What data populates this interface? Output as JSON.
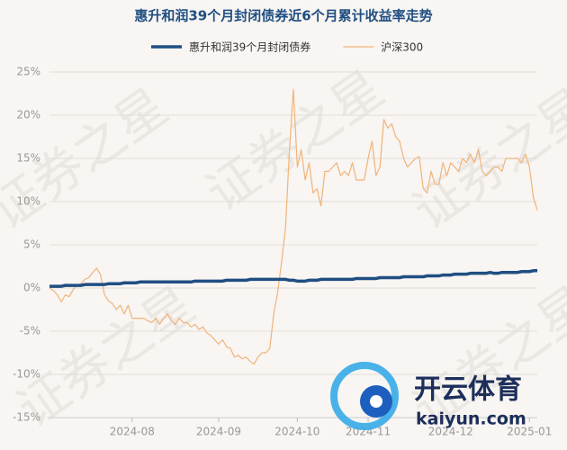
{
  "chart_data": {
    "type": "line",
    "title": "惠升和润39个月封闭债券近6个月累计收益率走势",
    "watermark": "证券之星",
    "logo_texts": [
      "开云体育",
      "kaiyun.com"
    ],
    "categories": [
      null,
      null,
      null,
      null,
      null,
      null,
      null,
      null,
      null,
      null,
      null,
      null,
      null,
      null,
      null,
      null,
      null,
      null,
      null,
      null,
      null,
      "2024-08",
      null,
      null,
      null,
      null,
      null,
      null,
      null,
      null,
      null,
      null,
      null,
      null,
      null,
      null,
      null,
      null,
      null,
      null,
      null,
      null,
      null,
      "2024-09",
      null,
      null,
      null,
      null,
      null,
      null,
      null,
      null,
      null,
      null,
      null,
      null,
      null,
      null,
      null,
      null,
      null,
      null,
      null,
      "2024-10",
      null,
      null,
      null,
      null,
      null,
      null,
      null,
      null,
      null,
      null,
      null,
      null,
      null,
      null,
      null,
      null,
      null,
      "2024-11",
      null,
      null,
      null,
      null,
      null,
      null,
      null,
      null,
      null,
      null,
      null,
      null,
      null,
      null,
      null,
      null,
      null,
      null,
      null,
      null,
      "2024-12",
      null,
      null,
      null,
      null,
      null,
      null,
      null,
      null,
      null,
      null,
      null,
      null,
      null,
      null,
      null,
      null,
      null,
      null,
      null,
      "2025-01",
      null,
      null
    ],
    "series": [
      {
        "name": "惠升和润39个月封闭债券",
        "color": "#1f4e82",
        "width": 3.5,
        "values": [
          0.2,
          0.2,
          0.2,
          0.2,
          0.3,
          0.3,
          0.3,
          0.3,
          0.3,
          0.4,
          0.4,
          0.4,
          0.4,
          0.4,
          0.4,
          0.5,
          0.5,
          0.5,
          0.5,
          0.6,
          0.6,
          0.6,
          0.6,
          0.7,
          0.7,
          0.7,
          0.7,
          0.7,
          0.7,
          0.7,
          0.7,
          0.7,
          0.7,
          0.7,
          0.7,
          0.7,
          0.7,
          0.8,
          0.8,
          0.8,
          0.8,
          0.8,
          0.8,
          0.8,
          0.8,
          0.9,
          0.9,
          0.9,
          0.9,
          0.9,
          0.9,
          1.0,
          1.0,
          1.0,
          1.0,
          1.0,
          1.0,
          1.0,
          1.0,
          1.0,
          1.0,
          0.9,
          0.9,
          0.8,
          0.8,
          0.8,
          0.9,
          0.9,
          0.9,
          1.0,
          1.0,
          1.0,
          1.0,
          1.0,
          1.0,
          1.0,
          1.0,
          1.0,
          1.1,
          1.1,
          1.1,
          1.1,
          1.1,
          1.1,
          1.2,
          1.2,
          1.2,
          1.2,
          1.2,
          1.2,
          1.3,
          1.3,
          1.3,
          1.3,
          1.3,
          1.3,
          1.4,
          1.4,
          1.4,
          1.4,
          1.5,
          1.5,
          1.5,
          1.6,
          1.6,
          1.6,
          1.6,
          1.7,
          1.7,
          1.7,
          1.7,
          1.7,
          1.8,
          1.7,
          1.7,
          1.8,
          1.8,
          1.8,
          1.8,
          1.8,
          1.9,
          1.9,
          1.9,
          2.0,
          2.0
        ]
      },
      {
        "name": "沪深300",
        "color": "#f0b47a",
        "width": 1.2,
        "values": [
          0.0,
          -0.3,
          -0.8,
          -1.6,
          -0.8,
          -1.0,
          -0.2,
          0.3,
          0.5,
          1.0,
          1.2,
          1.8,
          2.3,
          1.5,
          -0.8,
          -1.5,
          -1.8,
          -2.5,
          -2.0,
          -3.0,
          -2.0,
          -3.5,
          -3.5,
          -3.5,
          -3.5,
          -3.8,
          -4.0,
          -3.5,
          -4.2,
          -3.5,
          -3.0,
          -3.8,
          -4.2,
          -3.5,
          -4.0,
          -4.0,
          -4.5,
          -4.2,
          -4.8,
          -4.5,
          -5.2,
          -5.5,
          -6.0,
          -6.5,
          -6.0,
          -6.8,
          -7.0,
          -8.0,
          -7.8,
          -8.2,
          -8.0,
          -8.5,
          -8.8,
          -8.0,
          -7.5,
          -7.5,
          -7.0,
          -3.0,
          -0.5,
          3.0,
          7.0,
          16.0,
          23.0,
          14.0,
          16.0,
          12.5,
          14.5,
          11.0,
          11.5,
          9.5,
          13.5,
          13.5,
          14.0,
          14.5,
          13.0,
          13.5,
          13.0,
          14.5,
          12.5,
          12.5,
          12.5,
          15.0,
          17.0,
          13.0,
          14.0,
          19.5,
          18.5,
          19.0,
          17.5,
          17.0,
          15.0,
          14.0,
          14.5,
          15.0,
          15.2,
          11.5,
          11.0,
          13.5,
          12.0,
          12.0,
          14.5,
          13.0,
          14.5,
          14.0,
          13.5,
          15.0,
          14.5,
          15.5,
          14.5,
          16.0,
          13.5,
          13.0,
          13.5,
          14.0,
          14.0,
          13.5,
          15.0,
          15.0,
          15.0,
          15.0,
          14.5,
          15.5,
          14.0,
          10.5,
          9.0
        ]
      }
    ],
    "ylim": [
      -15,
      25
    ],
    "yticks": [
      {
        "value": -15,
        "label": "-15%"
      },
      {
        "value": -10,
        "label": "-10%"
      },
      {
        "value": -5,
        "label": "-5%"
      },
      {
        "value": 0,
        "label": "0%"
      },
      {
        "value": 5,
        "label": "5%"
      },
      {
        "value": 10,
        "label": "10%"
      },
      {
        "value": 15,
        "label": "15%"
      },
      {
        "value": 20,
        "label": "20%"
      },
      {
        "value": 25,
        "label": "25%"
      }
    ],
    "grid": true,
    "legend": "top"
  }
}
